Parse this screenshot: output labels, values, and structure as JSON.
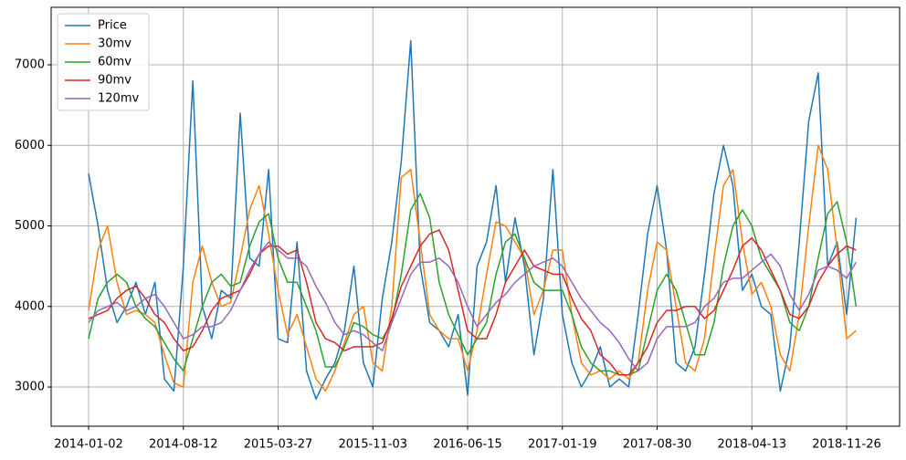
{
  "chart_data": {
    "type": "line",
    "categories": [
      "2014-01-02",
      null,
      null,
      null,
      null,
      null,
      null,
      null,
      null,
      null,
      "2014-08-12",
      null,
      null,
      null,
      null,
      null,
      null,
      null,
      null,
      null,
      "2015-03-27",
      null,
      null,
      null,
      null,
      null,
      null,
      null,
      null,
      null,
      "2015-11-03",
      null,
      null,
      null,
      null,
      null,
      null,
      null,
      null,
      null,
      "2016-06-15",
      null,
      null,
      null,
      null,
      null,
      null,
      null,
      null,
      null,
      "2017-01-19",
      null,
      null,
      null,
      null,
      null,
      null,
      null,
      null,
      null,
      "2017-08-30",
      null,
      null,
      null,
      null,
      null,
      null,
      null,
      null,
      null,
      "2018-04-13",
      null,
      null,
      null,
      null,
      null,
      null,
      null,
      null,
      null,
      "2018-11-26",
      null
    ],
    "series": [
      {
        "name": "Price",
        "color": "#1f77b4",
        "values": [
          5650,
          5000,
          4200,
          3800,
          4000,
          4300,
          3900,
          4300,
          3100,
          2950,
          4500,
          6800,
          4000,
          3600,
          4200,
          4100,
          6400,
          4600,
          4500,
          5700,
          3600,
          3550,
          4800,
          3200,
          2850,
          3100,
          3300,
          3700,
          4500,
          3300,
          3000,
          4100,
          4800,
          5800,
          7300,
          4500,
          3800,
          3700,
          3500,
          3900,
          2900,
          4500,
          4800,
          5500,
          4300,
          5100,
          4500,
          3400,
          4100,
          5700,
          3900,
          3300,
          3000,
          3200,
          3500,
          3000,
          3100,
          3000,
          3900,
          4900,
          5500,
          4700,
          3300,
          3200,
          3500,
          4400,
          5400,
          6000,
          5500,
          4200,
          4400,
          4000,
          3900,
          2950,
          3500,
          4800,
          6300,
          6900,
          4500,
          4800,
          3900,
          5100
        ]
      },
      {
        "name": "30mv",
        "color": "#ff7f0e",
        "values": [
          3950,
          4700,
          5000,
          4300,
          3900,
          3950,
          3900,
          3800,
          3400,
          3050,
          3000,
          4300,
          4750,
          4300,
          4000,
          4050,
          4600,
          5200,
          5500,
          4900,
          4200,
          3650,
          3900,
          3500,
          3100,
          2950,
          3200,
          3550,
          3900,
          4000,
          3300,
          3200,
          4000,
          5600,
          5700,
          4800,
          3900,
          3700,
          3600,
          3600,
          3200,
          3700,
          4400,
          5050,
          5000,
          4800,
          4600,
          3900,
          4200,
          4700,
          4700,
          3900,
          3300,
          3150,
          3200,
          3100,
          3200,
          3100,
          3300,
          4200,
          4800,
          4700,
          4000,
          3300,
          3200,
          3600,
          4600,
          5500,
          5700,
          4800,
          4150,
          4300,
          4000,
          3400,
          3200,
          3900,
          5000,
          6000,
          5700,
          4700,
          3600,
          3700
        ]
      },
      {
        "name": "60mv",
        "color": "#2ca02c",
        "values": [
          3600,
          4100,
          4300,
          4400,
          4300,
          4000,
          3850,
          3750,
          3550,
          3350,
          3200,
          3600,
          4000,
          4300,
          4400,
          4250,
          4300,
          4750,
          5050,
          5150,
          4600,
          4300,
          4300,
          4000,
          3700,
          3250,
          3250,
          3500,
          3800,
          3750,
          3650,
          3600,
          3800,
          4400,
          5200,
          5400,
          5100,
          4300,
          3900,
          3650,
          3400,
          3600,
          3800,
          4400,
          4800,
          4900,
          4600,
          4300,
          4200,
          4200,
          4200,
          3900,
          3500,
          3300,
          3200,
          3200,
          3150,
          3150,
          3200,
          3700,
          4200,
          4400,
          4200,
          3800,
          3400,
          3400,
          3800,
          4500,
          5000,
          5200,
          5000,
          4600,
          4400,
          4200,
          3800,
          3700,
          4000,
          4600,
          5150,
          5300,
          4800,
          4000
        ]
      },
      {
        "name": "90mv",
        "color": "#d62728",
        "values": [
          3850,
          3900,
          3950,
          4100,
          4200,
          4250,
          4100,
          3900,
          3800,
          3600,
          3450,
          3500,
          3700,
          3950,
          4100,
          4150,
          4200,
          4400,
          4650,
          4750,
          4750,
          4650,
          4700,
          4300,
          3800,
          3600,
          3550,
          3450,
          3500,
          3500,
          3500,
          3550,
          3850,
          4250,
          4500,
          4750,
          4900,
          4950,
          4700,
          4200,
          3700,
          3600,
          3600,
          3900,
          4300,
          4500,
          4700,
          4500,
          4450,
          4400,
          4400,
          4100,
          3850,
          3700,
          3400,
          3300,
          3150,
          3150,
          3300,
          3500,
          3800,
          3950,
          3950,
          4000,
          4000,
          3850,
          3950,
          4200,
          4450,
          4750,
          4850,
          4700,
          4450,
          4200,
          3900,
          3850,
          4000,
          4300,
          4500,
          4650,
          4750,
          4700
        ]
      },
      {
        "name": "120mv",
        "color": "#9467bd",
        "values": [
          3800,
          3950,
          4000,
          4050,
          3950,
          4000,
          4100,
          4150,
          4000,
          3800,
          3600,
          3650,
          3750,
          3750,
          3800,
          3950,
          4200,
          4450,
          4650,
          4800,
          4700,
          4600,
          4600,
          4500,
          4250,
          4050,
          3800,
          3650,
          3700,
          3650,
          3550,
          3450,
          3800,
          4100,
          4400,
          4550,
          4550,
          4600,
          4500,
          4300,
          4000,
          3750,
          3900,
          4050,
          4150,
          4300,
          4400,
          4500,
          4550,
          4600,
          4500,
          4300,
          4100,
          3950,
          3800,
          3700,
          3550,
          3350,
          3200,
          3300,
          3600,
          3750,
          3750,
          3750,
          3800,
          4000,
          4100,
          4300,
          4350,
          4350,
          4450,
          4550,
          4650,
          4500,
          4150,
          3950,
          4150,
          4450,
          4500,
          4450,
          4350,
          4550
        ]
      }
    ],
    "ylim": [
      2513,
      7714
    ],
    "yticks": [
      3000,
      4000,
      5000,
      6000,
      7000
    ],
    "grid": true,
    "legend": "upper left"
  }
}
